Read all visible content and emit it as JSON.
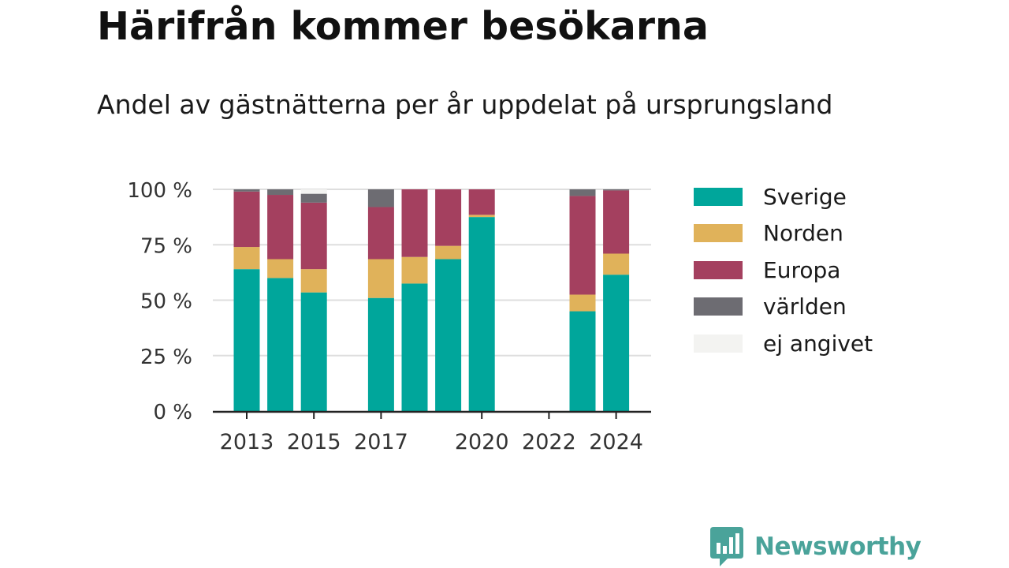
{
  "title": "Härifrån kommer besökarna",
  "subtitle": "Andel av gästnätterna per år uppdelat på ursprungsland",
  "brand": {
    "name": "Newsworthy",
    "logo_icon": "bar-chart-speech-bubble-icon",
    "color": "#4aa39a"
  },
  "chart_data": {
    "type": "bar",
    "stacked": true,
    "x": [
      2013,
      2014,
      2015,
      2016,
      2017,
      2018,
      2019,
      2020,
      2021,
      2022,
      2023,
      2024
    ],
    "x_tick_labels": [
      "2013",
      "2015",
      "2017",
      "2020",
      "2022",
      "2024"
    ],
    "x_tick_values": [
      2013,
      2015,
      2017,
      2020,
      2022,
      2024
    ],
    "y_tick_labels": [
      "0 %",
      "25 %",
      "50 %",
      "75 %",
      "100 %"
    ],
    "y_tick_values": [
      0,
      25,
      50,
      75,
      100
    ],
    "ylim": [
      0,
      100
    ],
    "grid": true,
    "legend_position": "right",
    "series": [
      {
        "name": "Sverige",
        "color": "#00a69b",
        "values": [
          64,
          60,
          53.5,
          null,
          51,
          57.5,
          68.5,
          87.5,
          null,
          null,
          45,
          61.5
        ]
      },
      {
        "name": "Norden",
        "color": "#e0b25a",
        "values": [
          10,
          8.5,
          10.5,
          null,
          17.5,
          12,
          6,
          1,
          null,
          null,
          7.5,
          9.5
        ]
      },
      {
        "name": "Europa",
        "color": "#a4405f",
        "values": [
          25,
          29,
          30,
          null,
          23.5,
          30.5,
          25.5,
          11.5,
          null,
          null,
          44.5,
          28.5
        ]
      },
      {
        "name": "världen",
        "color": "#6d6c72",
        "values": [
          1,
          2.5,
          4,
          null,
          8,
          0,
          0,
          0,
          null,
          null,
          3,
          0.5
        ]
      },
      {
        "name": "ej angivet",
        "color": "#f3f3f1",
        "values": [
          0,
          0,
          2,
          null,
          0,
          0,
          0,
          0,
          null,
          null,
          0,
          0
        ]
      }
    ]
  }
}
